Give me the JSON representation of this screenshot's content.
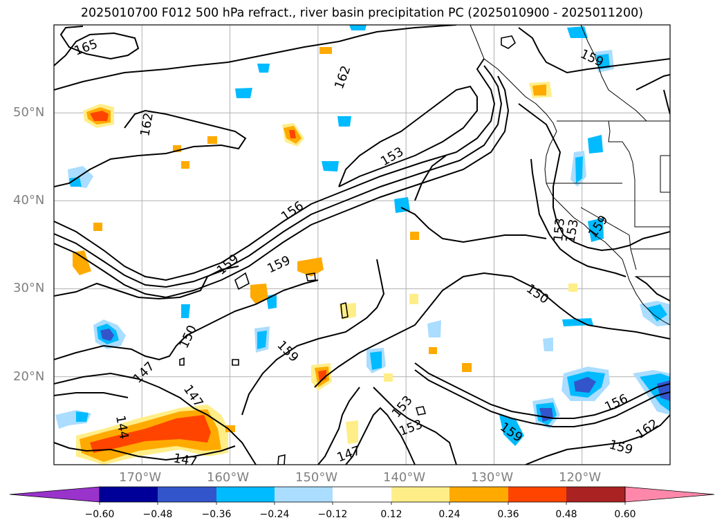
{
  "title": "2025010700 F012 500 hPa refract., river basin precipitation PC (2025010900 - 2025011200)",
  "map": {
    "lat_labels": [
      "50°N",
      "40°N",
      "30°N",
      "20°N"
    ],
    "lon_labels": [
      "170°W",
      "160°W",
      "150°W",
      "140°W",
      "130°W",
      "120°W"
    ],
    "lat_range": [
      10,
      60
    ],
    "lon_range": [
      -180,
      -110
    ],
    "gridlines": true
  },
  "contour_labels": [
    "165",
    "162",
    "162",
    "159",
    "159",
    "153",
    "156",
    "159",
    "159",
    "153",
    "159",
    "150",
    "150",
    "147",
    "147",
    "144",
    "147",
    "153",
    "153",
    "147",
    "153",
    "156",
    "159",
    "162",
    "159"
  ],
  "colorbar": {
    "ticks": [
      "−0.60",
      "−0.48",
      "−0.36",
      "−0.24",
      "−0.12",
      "0.12",
      "0.24",
      "0.36",
      "0.48",
      "0.60"
    ],
    "colors": [
      "#9933cc",
      "#000099",
      "#3355cc",
      "#00bbff",
      "#aaddff",
      "#ffffff",
      "#ffee88",
      "#ffaa00",
      "#ff4400",
      "#aa2222",
      "#ff88aa"
    ]
  }
}
